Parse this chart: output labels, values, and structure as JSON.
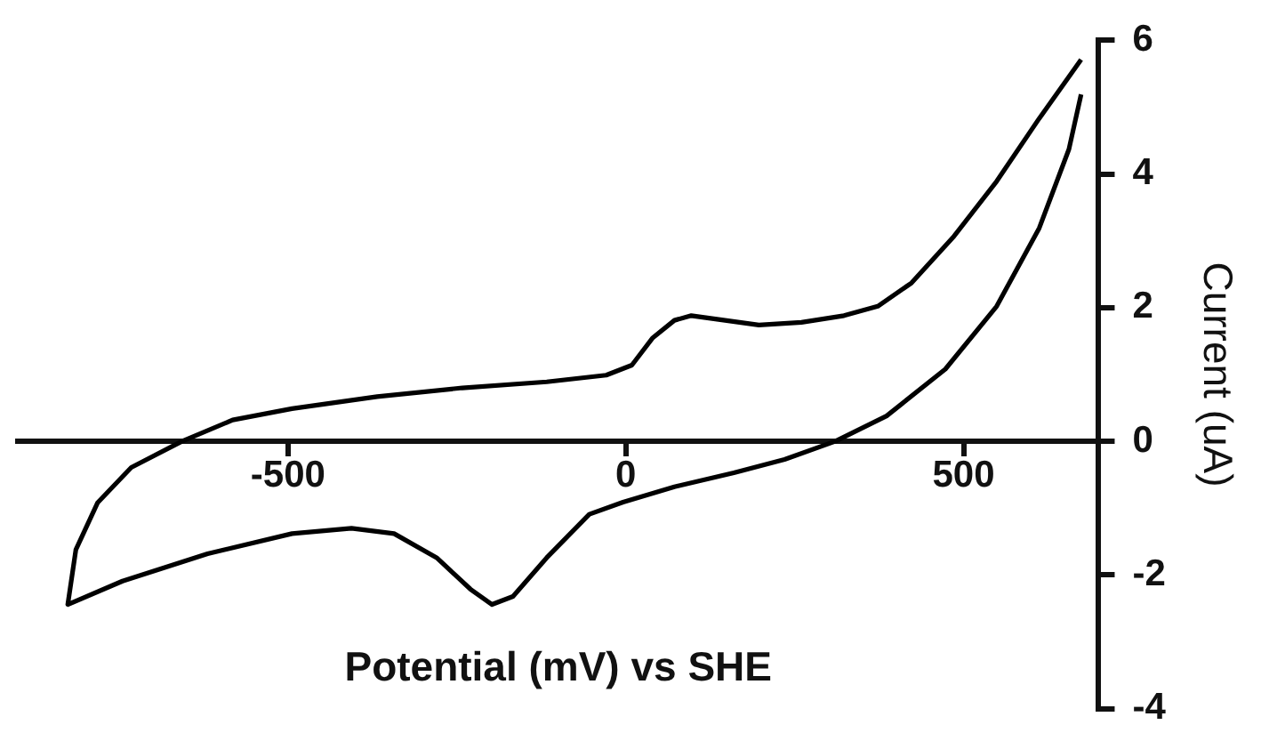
{
  "chart_data": {
    "type": "line",
    "xlabel": "Potential (mV) vs SHE",
    "ylabel": "Current (uA)",
    "xlim": [
      -900,
      700
    ],
    "xticks": [
      -500,
      0,
      500
    ],
    "ylim": [
      -4,
      6
    ],
    "yticks": [
      -4,
      -2,
      0,
      2,
      4,
      6
    ],
    "grid": false,
    "legend": false,
    "marker": "none",
    "line_style": "solid",
    "series": [
      {
        "color": "#000000",
        "x": [
          674,
          612,
          549,
          486,
          423,
          373,
          323,
          260,
          197,
          147,
          97,
          72,
          40,
          9,
          -29,
          -117,
          -242,
          -368,
          -494,
          -582,
          -657,
          -732,
          -782,
          -814,
          -826,
          -745,
          -619,
          -494,
          -406,
          -343,
          -280,
          -230,
          -198,
          -167,
          -117,
          -54,
          -4,
          72,
          160,
          235,
          310,
          386,
          473,
          549,
          612,
          656,
          674
        ],
        "values": [
          5.71,
          4.83,
          3.89,
          3.07,
          2.37,
          2.02,
          1.88,
          1.78,
          1.74,
          1.81,
          1.88,
          1.81,
          1.55,
          1.14,
          0.99,
          0.89,
          0.8,
          0.67,
          0.49,
          0.32,
          0,
          -0.39,
          -0.92,
          -1.62,
          -2.44,
          -2.09,
          -1.68,
          -1.38,
          -1.3,
          -1.38,
          -1.74,
          -2.21,
          -2.44,
          -2.32,
          -1.74,
          -1.09,
          -0.91,
          -0.68,
          -0.47,
          -0.27,
          0,
          0.38,
          1.08,
          2.02,
          3.19,
          4.37,
          5.19
        ]
      }
    ]
  }
}
